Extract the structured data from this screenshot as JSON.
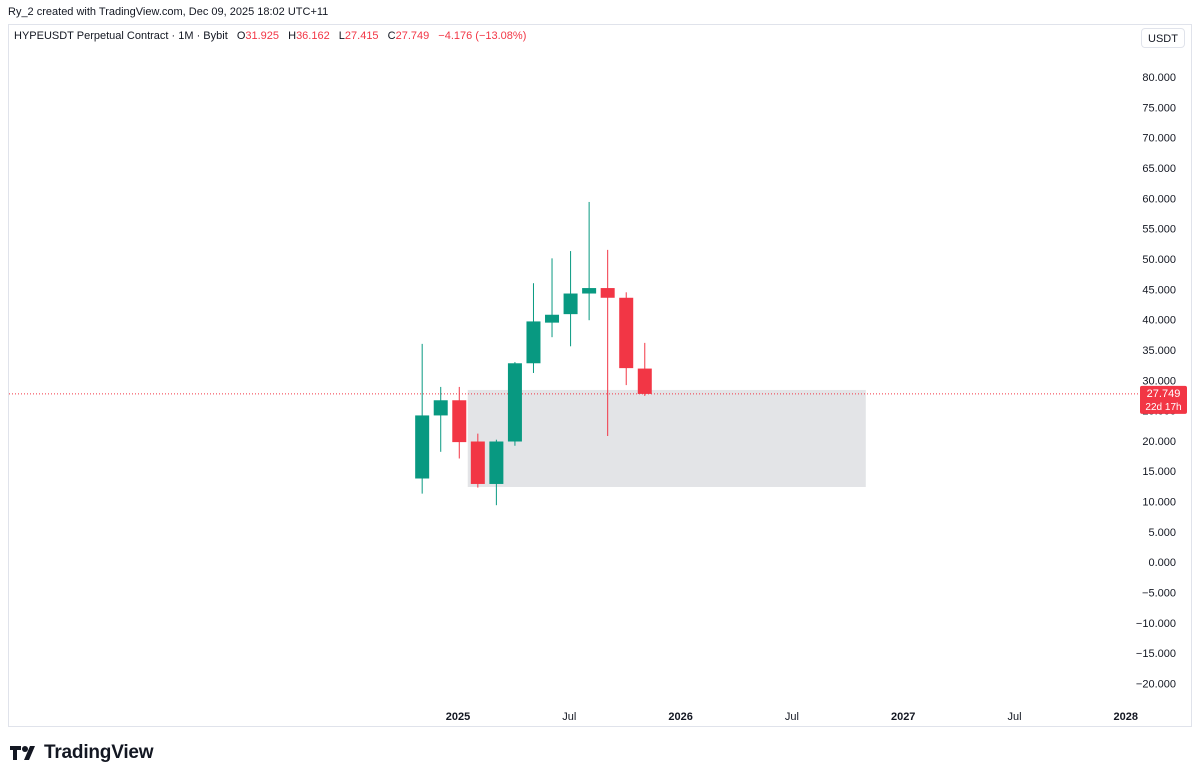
{
  "header": {
    "attribution": "Ry_2 created with TradingView.com, Dec 09, 2025 18:02 UTC+11"
  },
  "legend": {
    "symbol": "HYPEUSDT Perpetual Contract · 1M · Bybit",
    "o_label": "O",
    "o_value": "31.925",
    "h_label": "H",
    "h_value": "36.162",
    "l_label": "L",
    "l_value": "27.415",
    "c_label": "C",
    "c_value": "27.749",
    "change": "−4.176 (−13.08%)"
  },
  "toolbar": {
    "currency": "USDT"
  },
  "price_tag": {
    "price": "27.749",
    "countdown": "22d 17h"
  },
  "branding": {
    "name": "TradingView"
  },
  "colors": {
    "up": "#089981",
    "down": "#f23645",
    "zone": "#e1e3e6",
    "text": "#131722"
  },
  "chart_data": {
    "type": "candlestick",
    "y_axis": {
      "min": -20,
      "max": 80,
      "ticks": [
        "80.000",
        "75.000",
        "70.000",
        "65.000",
        "60.000",
        "55.000",
        "50.000",
        "45.000",
        "40.000",
        "35.000",
        "30.000",
        "25.000",
        "20.000",
        "15.000",
        "10.000",
        "5.000",
        "0.000",
        "−5.000",
        "−10.000",
        "−15.000",
        "−20.000"
      ],
      "tick_values": [
        80,
        75,
        70,
        65,
        60,
        55,
        50,
        45,
        40,
        35,
        30,
        25,
        20,
        15,
        10,
        5,
        0,
        -5,
        -10,
        -15,
        -20
      ],
      "position": "right"
    },
    "x_axis": {
      "labels": [
        {
          "text": "2025",
          "date": "2025-01",
          "bold": true
        },
        {
          "text": "Jul",
          "date": "2025-07",
          "bold": false
        },
        {
          "text": "2026",
          "date": "2026-01",
          "bold": true
        },
        {
          "text": "Jul",
          "date": "2026-07",
          "bold": false
        },
        {
          "text": "2027",
          "date": "2027-01",
          "bold": true
        },
        {
          "text": "Jul",
          "date": "2027-07",
          "bold": false
        },
        {
          "text": "2028",
          "date": "2028-01",
          "bold": true
        }
      ]
    },
    "candles": [
      {
        "date": "2024-11",
        "open": 13.8,
        "high": 36.0,
        "low": 11.3,
        "close": 24.2
      },
      {
        "date": "2024-12",
        "open": 24.2,
        "high": 28.9,
        "low": 18.2,
        "close": 26.7
      },
      {
        "date": "2025-01",
        "open": 26.7,
        "high": 28.9,
        "low": 17.1,
        "close": 19.8
      },
      {
        "date": "2025-02",
        "open": 19.9,
        "high": 21.2,
        "low": 12.3,
        "close": 12.9
      },
      {
        "date": "2025-03",
        "open": 12.9,
        "high": 20.2,
        "low": 9.4,
        "close": 19.9
      },
      {
        "date": "2025-04",
        "open": 19.9,
        "high": 33.0,
        "low": 19.2,
        "close": 32.8
      },
      {
        "date": "2025-05",
        "open": 32.8,
        "high": 46.0,
        "low": 31.2,
        "close": 39.7
      },
      {
        "date": "2025-06",
        "open": 39.5,
        "high": 50.1,
        "low": 37.1,
        "close": 40.8
      },
      {
        "date": "2025-07",
        "open": 40.9,
        "high": 51.3,
        "low": 35.6,
        "close": 44.3
      },
      {
        "date": "2025-08",
        "open": 44.3,
        "high": 59.4,
        "low": 39.9,
        "close": 45.2
      },
      {
        "date": "2025-09",
        "open": 45.2,
        "high": 51.5,
        "low": 20.8,
        "close": 43.6
      },
      {
        "date": "2025-10",
        "open": 43.6,
        "high": 44.5,
        "low": 29.2,
        "close": 32.0
      },
      {
        "date": "2025-11",
        "open": 31.925,
        "high": 36.162,
        "low": 27.415,
        "close": 27.749
      }
    ],
    "zone": {
      "start": "2025-01-17",
      "end": "2026-10-31",
      "top": 28.4,
      "bottom": 12.4
    },
    "last_price": 27.749
  }
}
